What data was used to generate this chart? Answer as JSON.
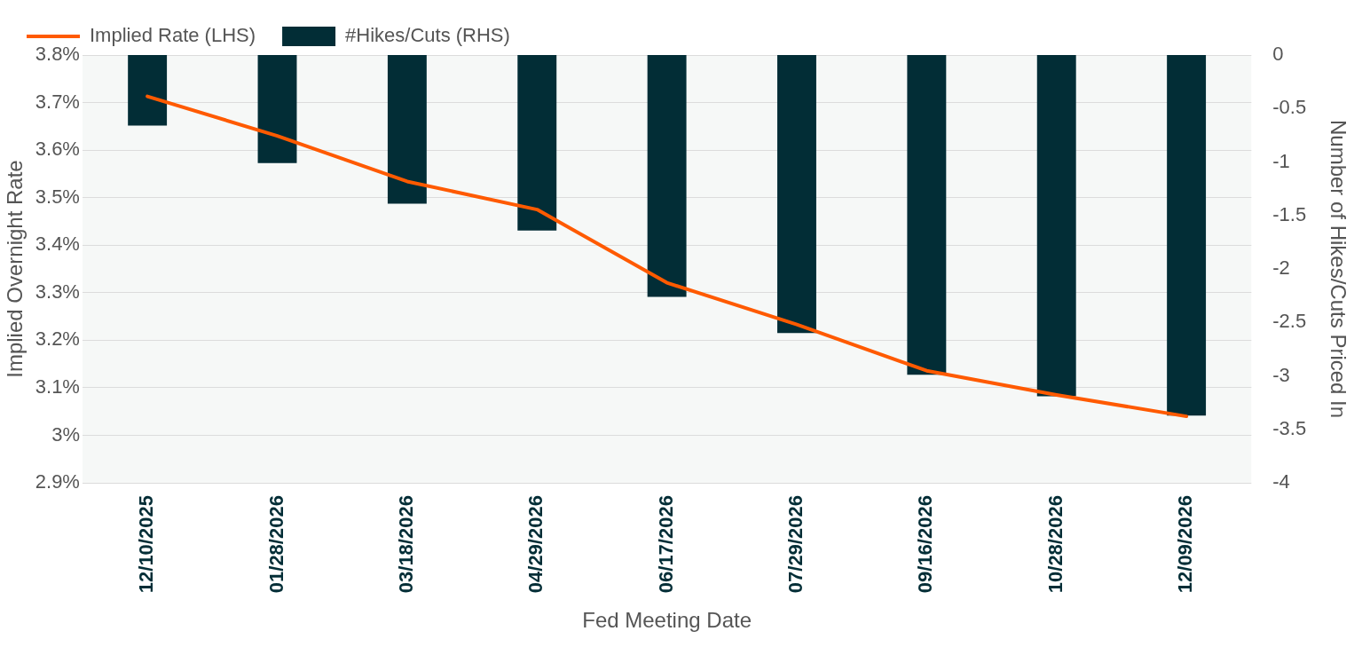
{
  "chart_data": {
    "type": "bar",
    "xlabel": "Fed Meeting Date",
    "ylabel": "Implied Overnight Rate",
    "y2label": "Number of Hikes/Cuts Priced In",
    "categories": [
      "12/10/2025",
      "01/28/2026",
      "03/18/2026",
      "04/29/2026",
      "06/17/2026",
      "07/29/2026",
      "09/16/2026",
      "10/28/2026",
      "12/09/2026"
    ],
    "series": [
      {
        "name": "Implied Rate (LHS)",
        "type": "line",
        "color": "#ff5a00",
        "values": [
          3.713,
          3.63,
          3.534,
          3.475,
          3.321,
          3.233,
          3.136,
          3.085,
          3.04
        ]
      },
      {
        "name": "#Hikes/Cuts (RHS)",
        "axis": "y2",
        "color": "#022d36",
        "values": [
          -0.66,
          -1.01,
          -1.39,
          -1.64,
          -2.26,
          -2.6,
          -2.99,
          -3.19,
          -3.37
        ]
      }
    ],
    "ylim": [
      2.9,
      3.8
    ],
    "yticks": [
      {
        "value": 2.9,
        "label": "2.9%"
      },
      {
        "value": 3.0,
        "label": "3%"
      },
      {
        "value": 3.1,
        "label": "3.1%"
      },
      {
        "value": 3.2,
        "label": "3.2%"
      },
      {
        "value": 3.3,
        "label": "3.3%"
      },
      {
        "value": 3.4,
        "label": "3.4%"
      },
      {
        "value": 3.5,
        "label": "3.5%"
      },
      {
        "value": 3.6,
        "label": "3.6%"
      },
      {
        "value": 3.7,
        "label": "3.7%"
      },
      {
        "value": 3.8,
        "label": "3.8%"
      }
    ],
    "y2lim": [
      -4,
      0
    ],
    "y2ticks": [
      -4,
      -3.5,
      -3,
      -2.5,
      -2,
      -1.5,
      -1,
      -0.5,
      0
    ],
    "grid": "y",
    "legend": "top left",
    "marker": "none"
  }
}
